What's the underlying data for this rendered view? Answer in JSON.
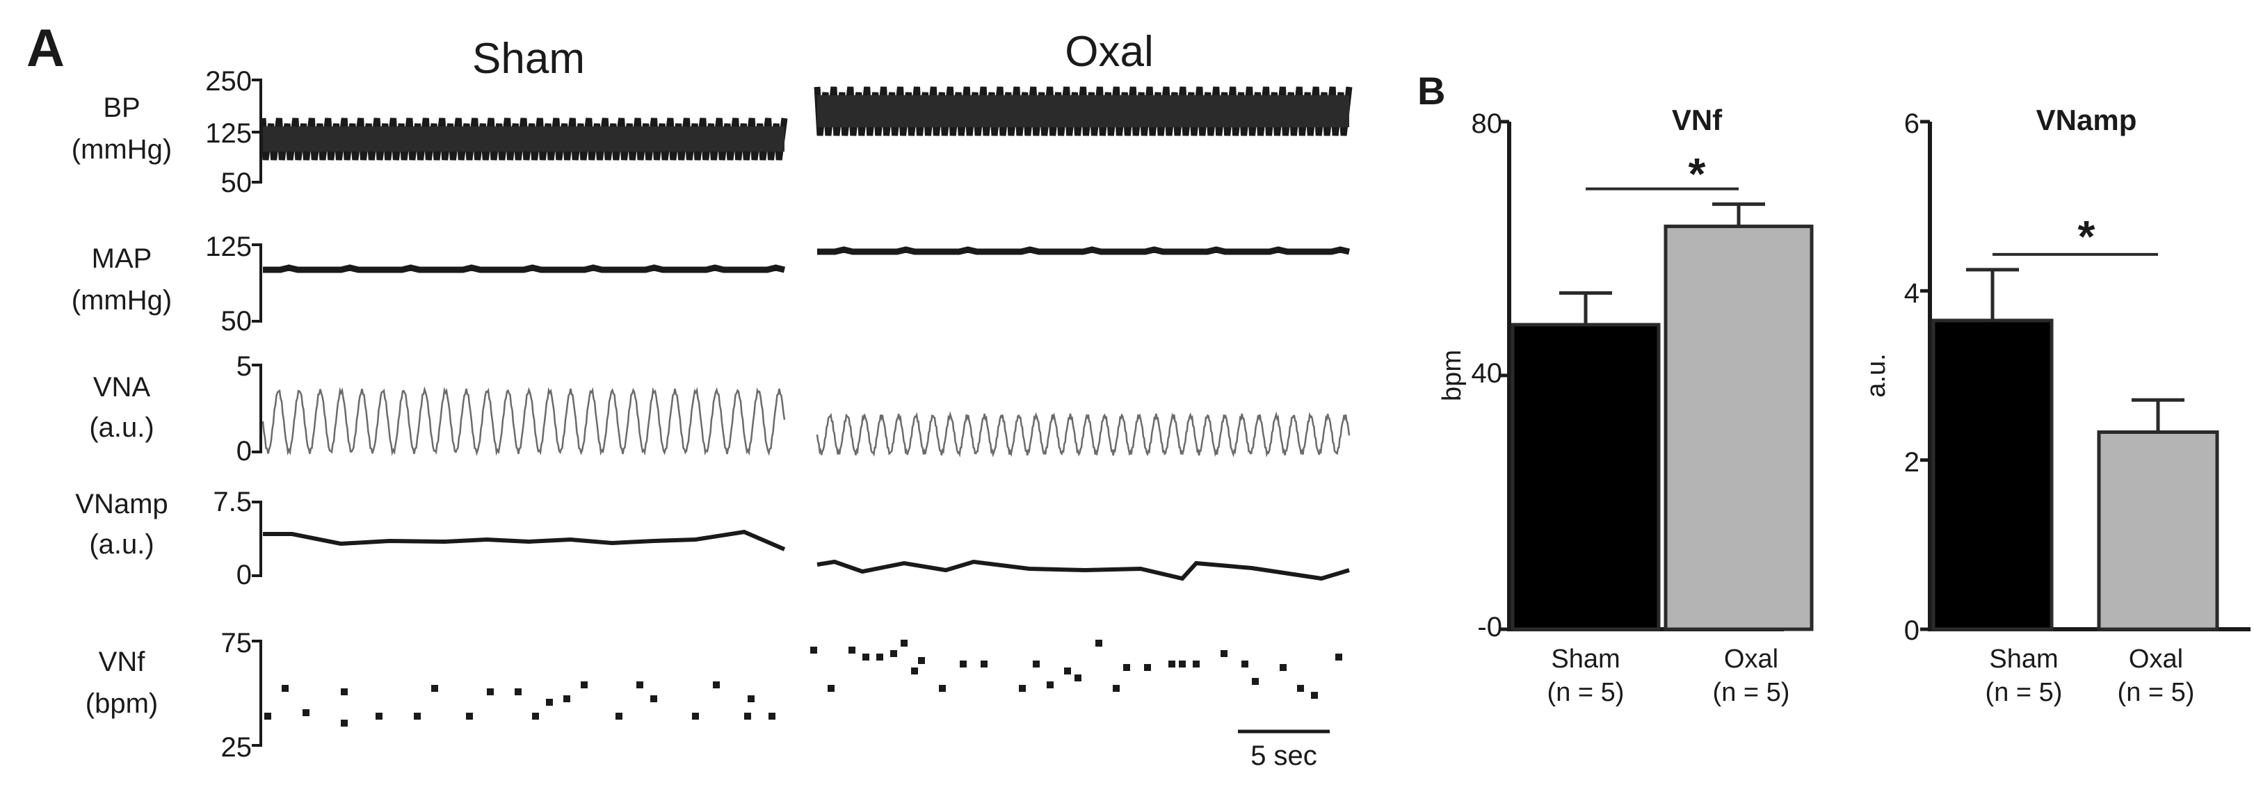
{
  "panels": {
    "a_letter": "A",
    "b_letter": "B"
  },
  "groups": [
    "Sham",
    "Oxal"
  ],
  "traces": [
    {
      "label_line1": "BP",
      "label_line2": "(mmHg)",
      "ticks": [
        "250",
        "125",
        "50"
      ]
    },
    {
      "label_line1": "MAP",
      "label_line2": "(mmHg)",
      "ticks": [
        "125",
        "50"
      ]
    },
    {
      "label_line1": "VNA",
      "label_line2": "(a.u.)",
      "ticks": [
        "5",
        "0"
      ]
    },
    {
      "label_line1": "VNamp",
      "label_line2": "(a.u.)",
      "ticks": [
        "7.5",
        "0"
      ]
    },
    {
      "label_line1": "VNf",
      "label_line2": "(bpm)",
      "ticks": [
        "75",
        "25"
      ]
    }
  ],
  "scale_bar": "5 sec",
  "colors": {
    "sham": "#000000",
    "oxal": "#b4b4b4",
    "trace": "#1a1a1a",
    "vna_trace": "#6b6b6b"
  },
  "chart_data": [
    {
      "type": "bar",
      "title": "VNf",
      "ylabel": "bpm",
      "ylim": [
        0,
        80
      ],
      "yticks": [
        "-0",
        "40",
        "80"
      ],
      "categories": [
        "Sham",
        "Oxal"
      ],
      "category_sublabels": [
        "(n = 5)",
        "(n = 5)"
      ],
      "values": [
        48,
        63.5
      ],
      "errors": [
        5,
        3.5
      ],
      "significance": "*"
    },
    {
      "type": "bar",
      "title": "VNamp",
      "ylabel": "a.u.",
      "ylim": [
        0,
        6
      ],
      "yticks": [
        "0",
        "2",
        "4",
        "6"
      ],
      "categories": [
        "Sham",
        "Oxal"
      ],
      "category_sublabels": [
        "(n = 5)",
        "(n = 5)"
      ],
      "values": [
        3.65,
        2.33
      ],
      "errors": [
        0.6,
        0.38
      ],
      "significance": "*"
    }
  ]
}
